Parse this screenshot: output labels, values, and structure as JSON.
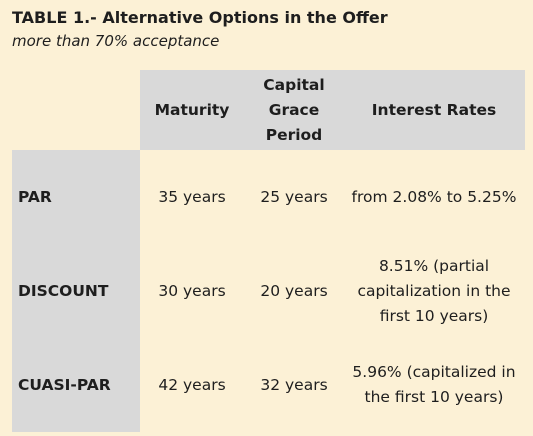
{
  "header": {
    "title": "TABLE 1.- Alternative Options in the Offer",
    "subtitle": "more than 70% acceptance"
  },
  "table": {
    "columns": [
      "Maturity",
      "Capital Grace Period",
      "Interest Rates"
    ],
    "rows": [
      [
        "PAR",
        "35 years",
        "25 years",
        "from 2.08% to 5.25%"
      ],
      [
        "DISCOUNT",
        "30 years",
        "20 years",
        "8.51% (partial capitalization in the first 10 years)"
      ],
      [
        "CUASI-PAR",
        "42 years",
        "32 years",
        "5.96% (capitalized in the first 10 years)"
      ]
    ]
  }
}
